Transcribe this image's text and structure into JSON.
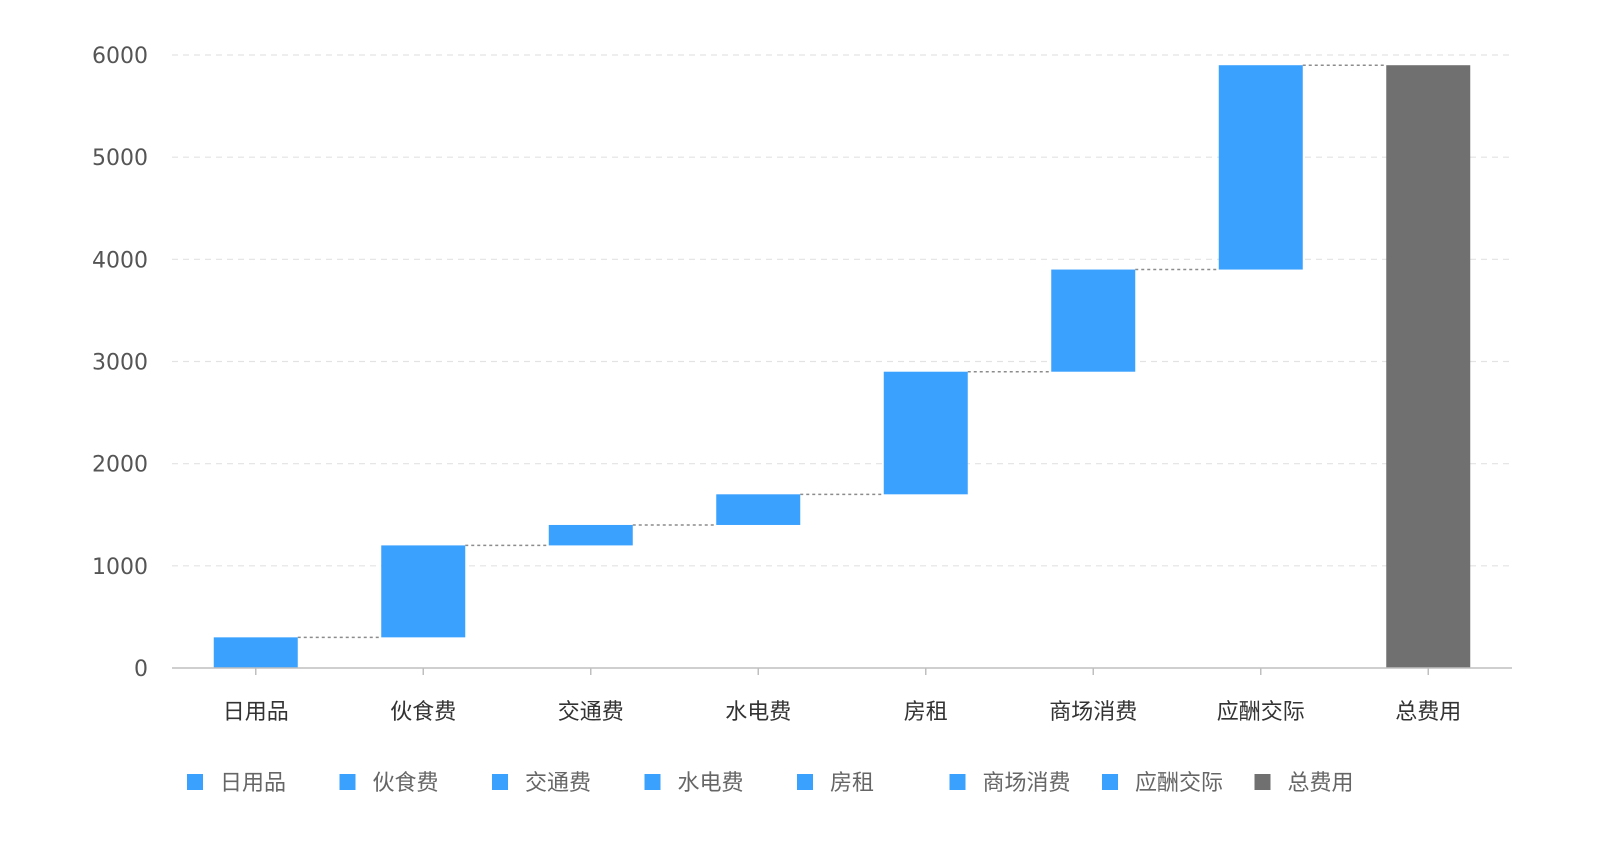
{
  "chart_data": {
    "type": "bar",
    "subtype": "waterfall",
    "categories": [
      "日用品",
      "伙食费",
      "交通费",
      "水电费",
      "房租",
      "商场消费",
      "应酬交际",
      "总费用"
    ],
    "series": [
      {
        "values": [
          300,
          900,
          200,
          300,
          1200,
          1000,
          2000,
          5900
        ]
      }
    ],
    "cumulative_start": [
      0,
      300,
      1200,
      1400,
      1700,
      2900,
      3900,
      0
    ],
    "is_total": [
      false,
      false,
      false,
      false,
      false,
      false,
      false,
      true
    ],
    "y_ticks": [
      0,
      1000,
      2000,
      3000,
      4000,
      5000,
      6000
    ],
    "ylim": [
      0,
      6000
    ],
    "grid": true,
    "grid_style": "dashed",
    "connectors": true,
    "legend_position": "bottom",
    "colors": {
      "increase": "#3aa1ff",
      "total": "#707070",
      "grid": "#e3e3e3",
      "axis": "#bfbfbf",
      "connector": "#8c8c8c"
    },
    "legend": [
      {
        "label": "日用品",
        "kind": "increase"
      },
      {
        "label": "伙食费",
        "kind": "increase"
      },
      {
        "label": "交通费",
        "kind": "increase"
      },
      {
        "label": "水电费",
        "kind": "increase"
      },
      {
        "label": "房租",
        "kind": "increase"
      },
      {
        "label": "商场消费",
        "kind": "increase"
      },
      {
        "label": "应酬交际",
        "kind": "increase"
      },
      {
        "label": "总费用",
        "kind": "total"
      }
    ]
  }
}
